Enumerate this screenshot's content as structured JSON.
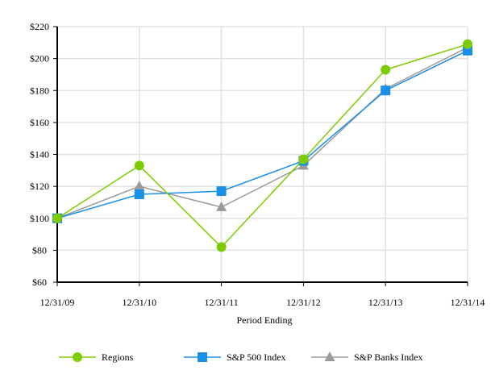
{
  "chart_data": {
    "type": "line",
    "title": "",
    "xlabel": "Period Ending",
    "ylabel": "",
    "categories": [
      "12/31/09",
      "12/31/10",
      "12/31/11",
      "12/31/12",
      "12/31/13",
      "12/31/14"
    ],
    "ylim": [
      60,
      220
    ],
    "yticks": [
      60,
      80,
      100,
      120,
      140,
      160,
      180,
      200,
      220
    ],
    "ytick_labels": [
      "$60",
      "$80",
      "$100",
      "$120",
      "$140",
      "$160",
      "$180",
      "$200",
      "$220"
    ],
    "grid": true,
    "legend_position": "bottom",
    "series": [
      {
        "name": "Regions",
        "marker": "circle",
        "color": "#7ccc00",
        "values": [
          100,
          133,
          82,
          137,
          193,
          209
        ]
      },
      {
        "name": "S&P 500 Index",
        "marker": "square",
        "color": "#1a8fe8",
        "values": [
          100,
          115,
          117,
          136,
          180,
          205
        ]
      },
      {
        "name": "S&P Banks Index",
        "marker": "triangle",
        "color": "#9a9a9a",
        "values": [
          100,
          120,
          107,
          133,
          181,
          207
        ]
      }
    ]
  }
}
